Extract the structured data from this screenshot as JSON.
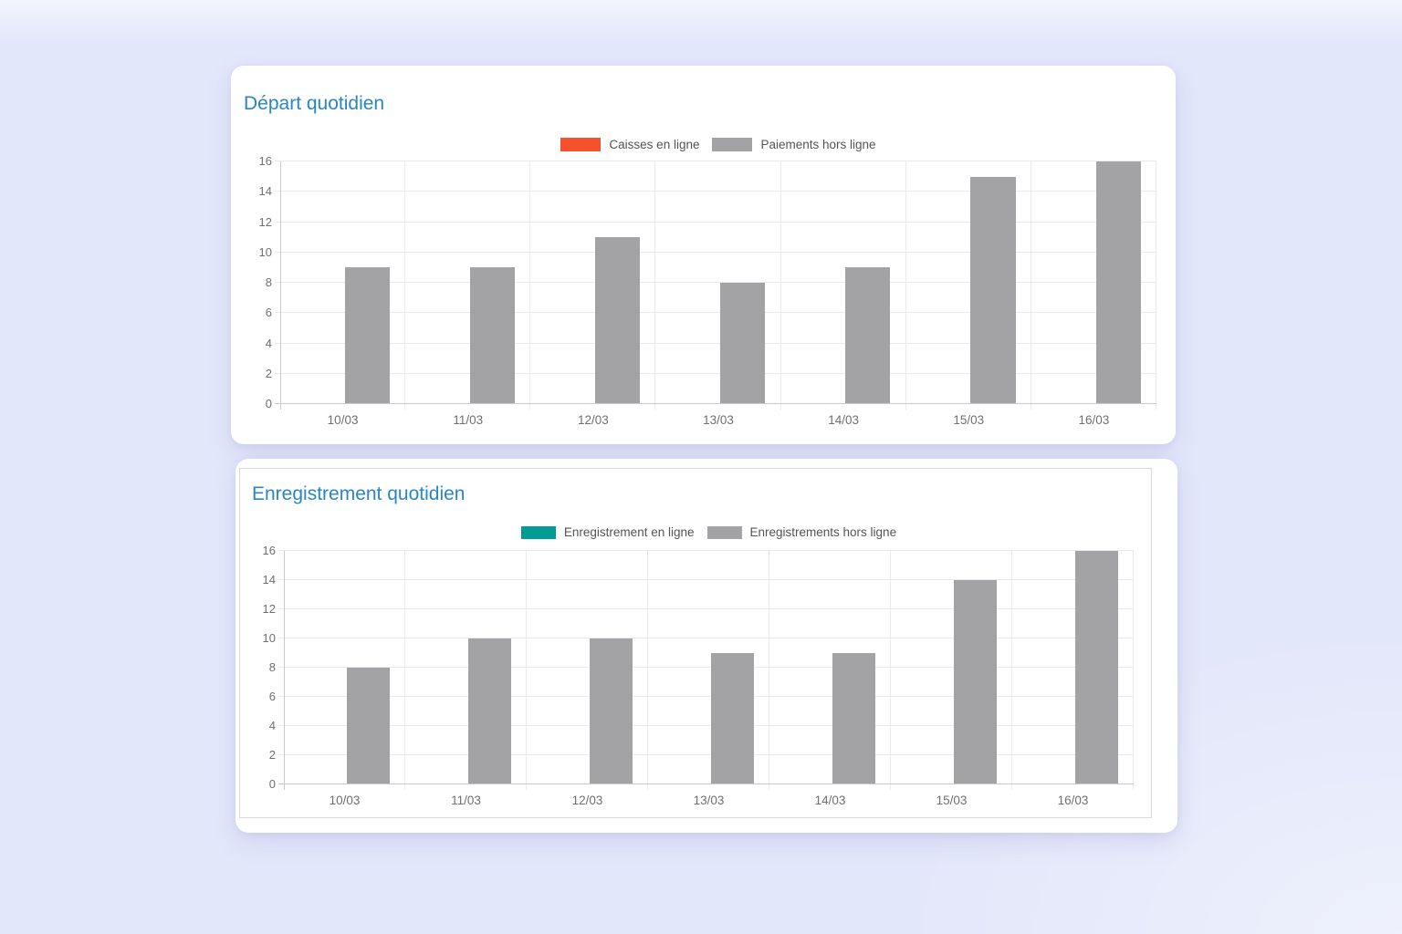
{
  "colors": {
    "page_background": "#e3e7fa",
    "card_background": "#ffffff",
    "title": "#2b85c2",
    "legend_text": "#545454",
    "axis_text": "#6f6f73",
    "grid_line": "#e9e9ef",
    "axis_line": "#c9c9d2",
    "online_payments": "#f4512c",
    "online_registrations": "#019b93",
    "offline_gray": "#a3a2a4"
  },
  "chart_data": [
    {
      "type": "bar",
      "title": "Départ quotidien",
      "categories": [
        "10/03",
        "11/03",
        "12/03",
        "13/03",
        "14/03",
        "15/03",
        "16/03"
      ],
      "series": [
        {
          "name": "Caisses en ligne",
          "color": "#f4512c",
          "values": [
            0,
            0,
            0,
            0,
            0,
            0,
            0
          ]
        },
        {
          "name": "Paiements hors ligne",
          "color": "#a3a2a4",
          "values": [
            9,
            9,
            11,
            8,
            9,
            15,
            16
          ]
        }
      ],
      "xlabel": "",
      "ylabel": "",
      "ylim": [
        0,
        16
      ],
      "ytick_step": 2,
      "grid": true,
      "legend_position": "top"
    },
    {
      "type": "bar",
      "title": "Enregistrement quotidien",
      "categories": [
        "10/03",
        "11/03",
        "12/03",
        "13/03",
        "14/03",
        "15/03",
        "16/03"
      ],
      "series": [
        {
          "name": "Enregistrement en ligne",
          "color": "#019b93",
          "values": [
            0,
            0,
            0,
            0,
            0,
            0,
            0
          ]
        },
        {
          "name": "Enregistrements hors ligne",
          "color": "#a3a2a4",
          "values": [
            8,
            10,
            10,
            9,
            9,
            14,
            16
          ]
        }
      ],
      "xlabel": "",
      "ylabel": "",
      "ylim": [
        0,
        16
      ],
      "ytick_step": 2,
      "grid": true,
      "legend_position": "top"
    }
  ]
}
